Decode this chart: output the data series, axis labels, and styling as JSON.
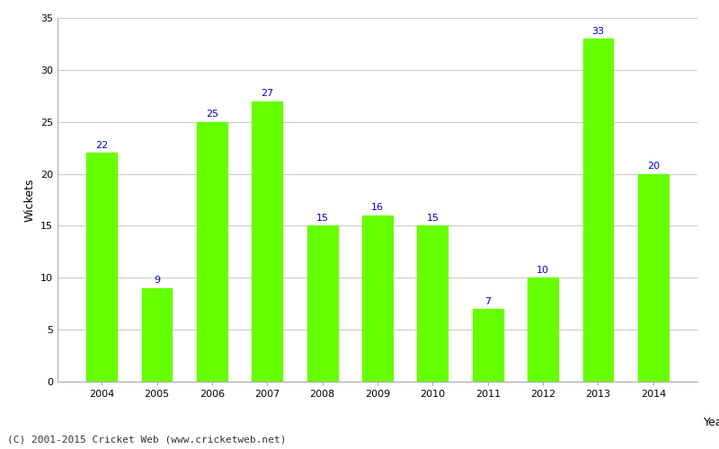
{
  "years": [
    "2004",
    "2005",
    "2006",
    "2007",
    "2008",
    "2009",
    "2010",
    "2011",
    "2012",
    "2013",
    "2014"
  ],
  "values": [
    22,
    9,
    25,
    27,
    15,
    16,
    15,
    7,
    10,
    33,
    20
  ],
  "bar_color": "#66ff00",
  "label_color": "#0000cc",
  "xlabel": "Year",
  "ylabel": "Wickets",
  "ylim": [
    0,
    35
  ],
  "yticks": [
    0,
    5,
    10,
    15,
    20,
    25,
    30,
    35
  ],
  "footer": "(C) 2001-2015 Cricket Web (www.cricketweb.net)",
  "background_color": "#ffffff",
  "grid_color": "#cccccc",
  "label_fontsize": 8,
  "axis_fontsize": 8,
  "footer_fontsize": 8
}
